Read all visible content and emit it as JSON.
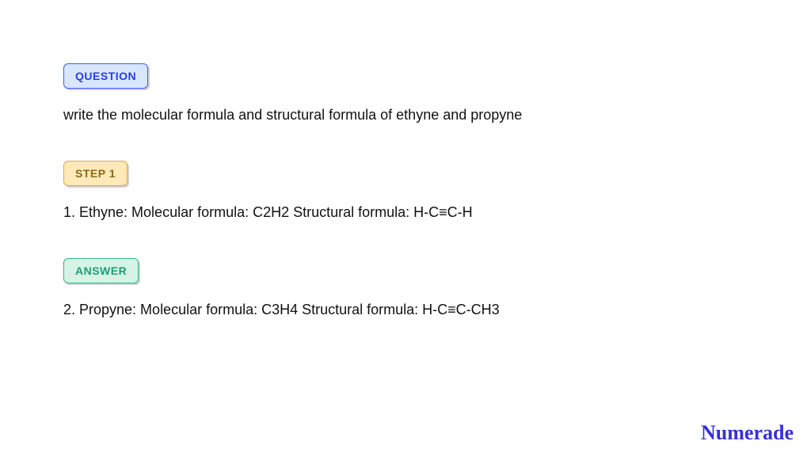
{
  "colors": {
    "text": "#111111",
    "logo": "#3730d4",
    "question_badge_bg": "#d9e6ff",
    "question_badge_border": "#3e5bff",
    "question_badge_text": "#2a3fe6",
    "step_badge_bg": "#ffe9b8",
    "step_badge_border": "#e6a93a",
    "step_badge_text": "#8a6a1a",
    "answer_badge_bg": "#d6f3e6",
    "answer_badge_border": "#34b58a",
    "answer_badge_text": "#1e9e73"
  },
  "question": {
    "badge": "QUESTION",
    "text": "write the molecular formula and structural formula of ethyne and propyne"
  },
  "step1": {
    "badge": "STEP 1",
    "text": "1. Ethyne: Molecular formula: C2H2 Structural formula: H-C≡C-H"
  },
  "answer": {
    "badge": "ANSWER",
    "text": "2. Propyne: Molecular formula: C3H4 Structural formula: H-C≡C-CH3"
  },
  "brand": "Numerade"
}
